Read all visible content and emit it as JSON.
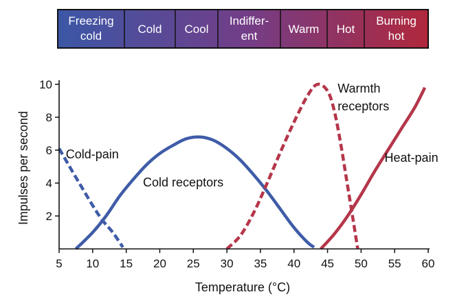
{
  "chart_data": {
    "type": "line",
    "xlabel": "Temperature (°C)",
    "ylabel": "Impulses per second",
    "xlim": [
      5,
      60
    ],
    "ylim": [
      0,
      10
    ],
    "x_ticks": [
      5,
      10,
      15,
      20,
      25,
      30,
      35,
      40,
      45,
      50,
      55,
      60
    ],
    "y_ticks": [
      2,
      4,
      6,
      8,
      10
    ],
    "grid": false,
    "legend": "none",
    "sensation_bands": [
      {
        "label_lines": [
          "Freezing",
          "cold"
        ],
        "color": "#3b57a6"
      },
      {
        "label_lines": [
          "Cold"
        ],
        "color": "#4a4a9e"
      },
      {
        "label_lines": [
          "Cool"
        ],
        "color": "#5e4596"
      },
      {
        "label_lines": [
          "Indiffer-",
          "ent"
        ],
        "color": "#723e88"
      },
      {
        "label_lines": [
          "Warm"
        ],
        "color": "#8a3570"
      },
      {
        "label_lines": [
          "Hot"
        ],
        "color": "#9a2e55"
      },
      {
        "label_lines": [
          "Burning",
          "hot"
        ],
        "color": "#b0283c"
      }
    ],
    "series": [
      {
        "name": "Cold-pain",
        "color": "#3f5ca8",
        "dashed": true,
        "points": [
          [
            5,
            6.1
          ],
          [
            8,
            4.0
          ],
          [
            11,
            2.0
          ],
          [
            13,
            1.0
          ],
          [
            14.5,
            0.1
          ]
        ]
      },
      {
        "name": "Cold receptors",
        "color": "#3f5ca8",
        "dashed": false,
        "points": [
          [
            7.5,
            0.0
          ],
          [
            10,
            1.0
          ],
          [
            12,
            2.0
          ],
          [
            14,
            3.2
          ],
          [
            16,
            4.2
          ],
          [
            18,
            5.1
          ],
          [
            20,
            5.8
          ],
          [
            22,
            6.3
          ],
          [
            24,
            6.7
          ],
          [
            26,
            6.8
          ],
          [
            28,
            6.6
          ],
          [
            30,
            6.1
          ],
          [
            32,
            5.4
          ],
          [
            34,
            4.5
          ],
          [
            36,
            3.5
          ],
          [
            38,
            2.4
          ],
          [
            40,
            1.3
          ],
          [
            42,
            0.4
          ],
          [
            43,
            0.1
          ]
        ]
      },
      {
        "name": "Warmth receptors",
        "color": "#b5364a",
        "dashed": true,
        "points": [
          [
            30,
            0.0
          ],
          [
            32,
            0.8
          ],
          [
            34,
            2.2
          ],
          [
            36,
            4.0
          ],
          [
            38,
            5.9
          ],
          [
            40,
            7.7
          ],
          [
            42,
            9.3
          ],
          [
            43.5,
            10.0
          ],
          [
            45,
            9.6
          ],
          [
            46,
            8.4
          ],
          [
            47,
            6.3
          ],
          [
            48,
            3.8
          ],
          [
            48.8,
            1.8
          ],
          [
            49.5,
            0.0
          ]
        ]
      },
      {
        "name": "Heat-pain",
        "color": "#b5364a",
        "dashed": false,
        "points": [
          [
            44,
            0.0
          ],
          [
            46,
            0.9
          ],
          [
            48,
            2.0
          ],
          [
            50,
            3.3
          ],
          [
            52,
            4.7
          ],
          [
            54,
            6.0
          ],
          [
            56,
            7.3
          ],
          [
            58,
            8.6
          ],
          [
            59.5,
            9.8
          ]
        ]
      }
    ],
    "annotations": [
      {
        "lines": [
          "Cold-pain"
        ],
        "x": 6,
        "y": 5.5
      },
      {
        "lines": [
          "Cold receptors"
        ],
        "x": 17.5,
        "y": 3.8
      },
      {
        "lines": [
          "Warmth",
          "receptors"
        ],
        "x": 46.5,
        "y": 9.5
      },
      {
        "lines": [
          "Heat-pain"
        ],
        "x": 53.5,
        "y": 5.3
      }
    ]
  }
}
